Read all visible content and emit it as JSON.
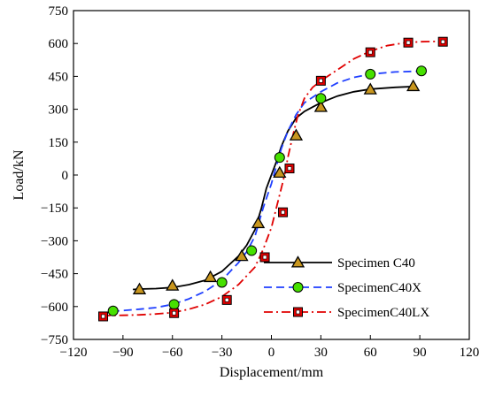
{
  "chart_data": {
    "type": "line",
    "xlabel": "Displacement/mm",
    "ylabel": "Load/kN",
    "xlim": [
      -120,
      120
    ],
    "ylim": [
      -750,
      750
    ],
    "xticks": [
      -120,
      -90,
      -60,
      -30,
      0,
      30,
      60,
      90,
      120
    ],
    "yticks": [
      -750,
      -600,
      -450,
      -300,
      -150,
      0,
      150,
      300,
      450,
      600,
      750
    ],
    "grid": false,
    "legend_position": "bottom-right",
    "series": [
      {
        "name": "Specimen C40",
        "color": "#000000",
        "line_style": "solid",
        "marker": "triangle",
        "marker_fill": "#c8961e",
        "curve": [
          [
            -84,
            -522
          ],
          [
            -80,
            -520
          ],
          [
            -70,
            -518
          ],
          [
            -60,
            -513
          ],
          [
            -50,
            -500
          ],
          [
            -40,
            -480
          ],
          [
            -30,
            -440
          ],
          [
            -20,
            -370
          ],
          [
            -15,
            -320
          ],
          [
            -10,
            -250
          ],
          [
            -6,
            -150
          ],
          [
            -3,
            -60
          ],
          [
            0,
            0
          ],
          [
            3,
            60
          ],
          [
            6,
            130
          ],
          [
            10,
            200
          ],
          [
            15,
            260
          ],
          [
            20,
            290
          ],
          [
            25,
            310
          ],
          [
            30,
            330
          ],
          [
            40,
            360
          ],
          [
            50,
            380
          ],
          [
            60,
            392
          ],
          [
            75,
            400
          ],
          [
            87,
            404
          ]
        ],
        "points": [
          [
            -80,
            -522
          ],
          [
            -60,
            -505
          ],
          [
            -37,
            -466
          ],
          [
            -18,
            -370
          ],
          [
            -8,
            -220
          ],
          [
            5,
            10
          ],
          [
            15,
            180
          ],
          [
            30,
            310
          ],
          [
            60,
            390
          ],
          [
            86,
            405
          ]
        ]
      },
      {
        "name": "SpecimenC40X",
        "color": "#1f3fff",
        "line_style": "dashed",
        "marker": "circle",
        "marker_fill": "#46e000",
        "curve": [
          [
            -97,
            -622
          ],
          [
            -90,
            -618
          ],
          [
            -80,
            -612
          ],
          [
            -70,
            -605
          ],
          [
            -60,
            -590
          ],
          [
            -50,
            -565
          ],
          [
            -40,
            -530
          ],
          [
            -30,
            -480
          ],
          [
            -20,
            -400
          ],
          [
            -15,
            -350
          ],
          [
            -10,
            -280
          ],
          [
            -5,
            -150
          ],
          [
            0,
            -40
          ],
          [
            3,
            40
          ],
          [
            6,
            120
          ],
          [
            10,
            200
          ],
          [
            15,
            275
          ],
          [
            20,
            330
          ],
          [
            30,
            380
          ],
          [
            40,
            420
          ],
          [
            50,
            445
          ],
          [
            60,
            460
          ],
          [
            75,
            470
          ],
          [
            92,
            474
          ]
        ],
        "points": [
          [
            -96,
            -620
          ],
          [
            -59,
            -590
          ],
          [
            -30,
            -490
          ],
          [
            -12,
            -345
          ],
          [
            5,
            80
          ],
          [
            30,
            350
          ],
          [
            60,
            460
          ],
          [
            91,
            475
          ]
        ]
      },
      {
        "name": "SpecimenC40LX",
        "color": "#e00000",
        "line_style": "dashdot",
        "marker": "square",
        "marker_fill": "#e00000",
        "curve": [
          [
            -103,
            -642
          ],
          [
            -90,
            -640
          ],
          [
            -80,
            -638
          ],
          [
            -70,
            -634
          ],
          [
            -60,
            -628
          ],
          [
            -50,
            -612
          ],
          [
            -40,
            -590
          ],
          [
            -30,
            -555
          ],
          [
            -20,
            -500
          ],
          [
            -10,
            -420
          ],
          [
            -5,
            -340
          ],
          [
            0,
            -240
          ],
          [
            3,
            -150
          ],
          [
            6,
            -60
          ],
          [
            8,
            0
          ],
          [
            10,
            80
          ],
          [
            13,
            180
          ],
          [
            16,
            270
          ],
          [
            20,
            350
          ],
          [
            25,
            400
          ],
          [
            30,
            430
          ],
          [
            40,
            480
          ],
          [
            50,
            530
          ],
          [
            60,
            565
          ],
          [
            70,
            590
          ],
          [
            80,
            602
          ],
          [
            90,
            608
          ],
          [
            105,
            610
          ]
        ],
        "points": [
          [
            -102,
            -645
          ],
          [
            -59,
            -630
          ],
          [
            -27,
            -570
          ],
          [
            -4,
            -375
          ],
          [
            7,
            -170
          ],
          [
            11,
            30
          ],
          [
            30,
            430
          ],
          [
            60,
            560
          ],
          [
            83,
            604
          ],
          [
            104,
            608
          ]
        ]
      }
    ]
  }
}
